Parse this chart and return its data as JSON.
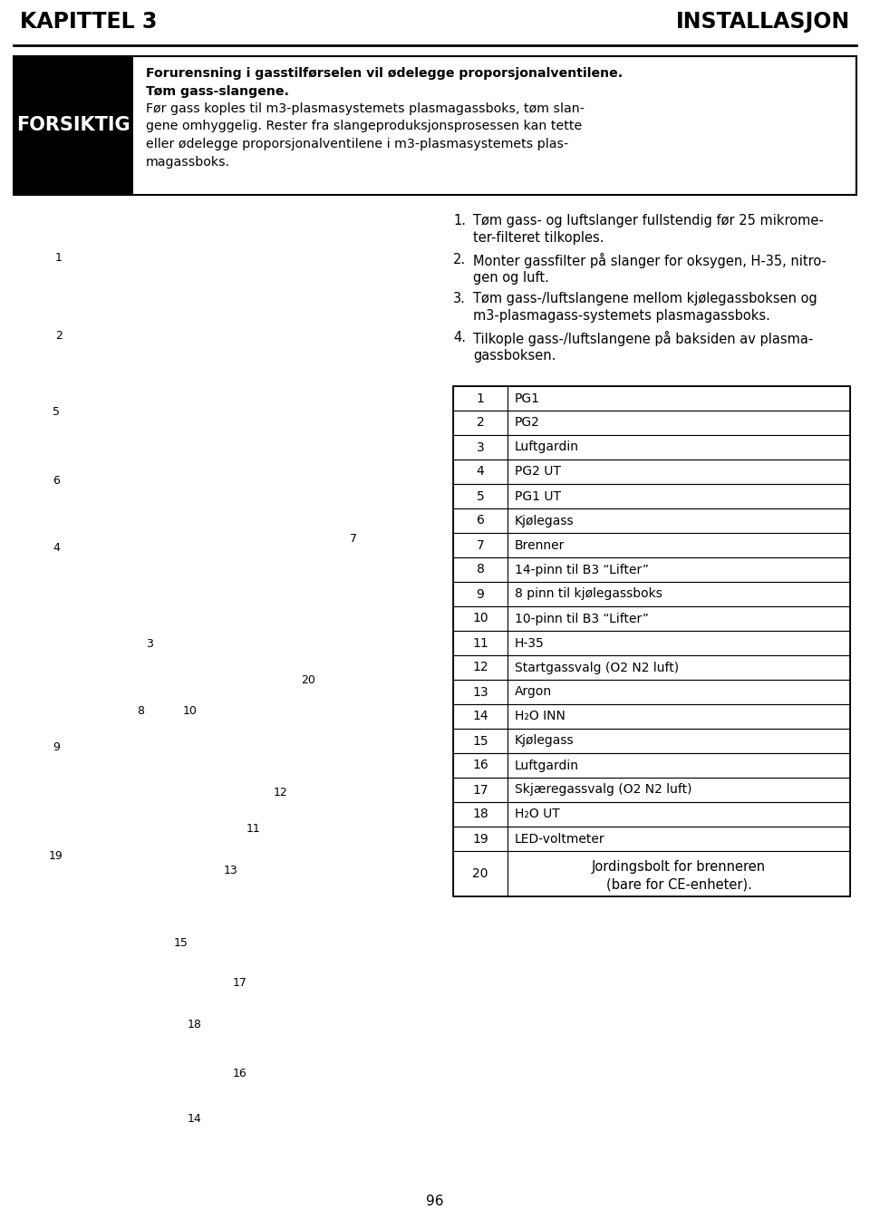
{
  "page_bg": "#ffffff",
  "header_left": "KAPITTEL 3",
  "header_right": "INSTALLASJON",
  "header_fontsize": 17,
  "warning_label": "FORSIKTIG",
  "warning_label_bg": "#000000",
  "warning_label_color": "#ffffff",
  "warning_label_fontsize": 15,
  "warning_line1": "Forurensning i gasstilførselen vil ødelegge proporsjonalventilene.",
  "warning_line2": "Tøm gass-slangene.",
  "warning_line3": "Før gass koples til m3-plasmasystemets plasmagassboks, tøm slan-",
  "warning_line4": "gene omhyggelig. Rester fra slangeproduksjonsprosessen kan tette",
  "warning_line5": "eller ødelegge proporsjonalventilene i m3-plasmasystemets plas-",
  "warning_line6": "magassboks.",
  "instr1_num": "1.",
  "instr1_line1": "Tøm gass- og luftslanger fullstendig før 25 mikrome-",
  "instr1_line2": "ter-filteret tilkoples.",
  "instr2_num": "2.",
  "instr2_line1": "Monter gassfilter på slanger for oksygen, H-35, nitro-",
  "instr2_line2": "gen og luft.",
  "instr3_num": "3.",
  "instr3_line1": "Tøm gass-/luftslangene mellom kjølegassboksen og",
  "instr3_line2": "m3-plasmagass-systemets plasmagassboks.",
  "instr4_num": "4.",
  "instr4_line1": "Tilkople gass-/luftslangene på baksiden av plasma-",
  "instr4_line2": "gassboksen.",
  "table_rows": [
    [
      "1",
      "PG1"
    ],
    [
      "2",
      "PG2"
    ],
    [
      "3",
      "Luftgardin"
    ],
    [
      "4",
      "PG2 UT"
    ],
    [
      "5",
      "PG1 UT"
    ],
    [
      "6",
      "Kjølegass"
    ],
    [
      "7",
      "Brenner"
    ],
    [
      "8",
      "14-pinn til B3 “Lifter”"
    ],
    [
      "9",
      "8 pinn til kjølegassboks"
    ],
    [
      "10",
      "10-pinn til B3 “Lifter”"
    ],
    [
      "11",
      "H-35"
    ],
    [
      "12",
      "Startgassvalg (O2 N2 luft)"
    ],
    [
      "13",
      "Argon"
    ],
    [
      "14",
      "H₂O INN"
    ],
    [
      "15",
      "Kjølegass"
    ],
    [
      "16",
      "Luftgardin"
    ],
    [
      "17",
      "Skjæregassvalg (O2 N2 luft)"
    ],
    [
      "18",
      "H₂O UT"
    ],
    [
      "19",
      "LED-voltmeter"
    ],
    [
      "20",
      "Jordingsbolt for brenneren\n(bare for CE-enheter)."
    ]
  ],
  "page_number": "96",
  "text_color": "#000000",
  "table_border_color": "#000000",
  "numbered_items": [
    [
      65,
      285,
      "1"
    ],
    [
      65,
      370,
      "2"
    ],
    [
      62,
      455,
      "5"
    ],
    [
      62,
      530,
      "6"
    ],
    [
      62,
      605,
      "4"
    ],
    [
      390,
      595,
      "7"
    ],
    [
      165,
      710,
      "3"
    ],
    [
      155,
      785,
      "8"
    ],
    [
      210,
      785,
      "10"
    ],
    [
      340,
      750,
      "20"
    ],
    [
      62,
      825,
      "9"
    ],
    [
      62,
      945,
      "19"
    ],
    [
      310,
      875,
      "12"
    ],
    [
      280,
      915,
      "11"
    ],
    [
      255,
      960,
      "13"
    ],
    [
      200,
      1040,
      "15"
    ],
    [
      265,
      1085,
      "17"
    ],
    [
      215,
      1130,
      "18"
    ],
    [
      265,
      1185,
      "16"
    ],
    [
      215,
      1235,
      "14"
    ]
  ]
}
